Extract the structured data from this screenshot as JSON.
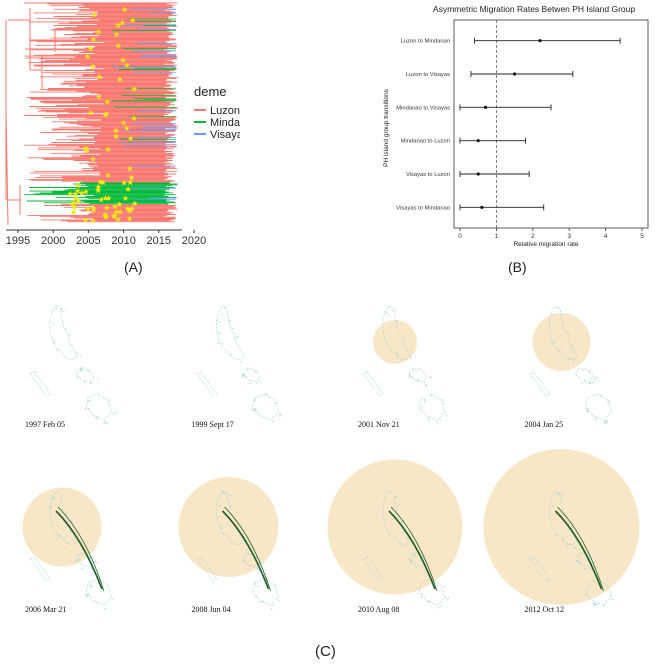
{
  "panels": {
    "a_label": "(A)",
    "b_label": "(B)",
    "c_label": "(C)"
  },
  "chart_data": [
    {
      "type": "tree",
      "x_axis_ticks": [
        "1995",
        "2000",
        "2005",
        "2010",
        "2015",
        "2020"
      ],
      "legend": {
        "title": "deme",
        "position": "right",
        "entries": [
          {
            "name": "Luzon",
            "color": "#f8766d"
          },
          {
            "name": "Mindanao",
            "color": "#00ba38"
          },
          {
            "name": "Visayas",
            "color": "#619cff"
          }
        ]
      },
      "marker_color": "#f5e61a"
    },
    {
      "type": "scatter",
      "title": "Asymmetric Migration Rates Betwen PH Island Group",
      "xlabel": "Relative migration rate",
      "ylabel": "PH island group transitions",
      "xlim": [
        0,
        5
      ],
      "x_ticks": [
        "0",
        "1",
        "2",
        "3",
        "4",
        "5"
      ],
      "reference_line_x": 1,
      "series": [
        {
          "label": "Luzon to Mindanao",
          "value": 2.2,
          "low": 0.4,
          "high": 4.4
        },
        {
          "label": "Luzon to Visayas",
          "value": 1.5,
          "low": 0.3,
          "high": 3.1
        },
        {
          "label": "Mindanao to Visayas",
          "value": 0.7,
          "low": 0.0,
          "high": 2.5
        },
        {
          "label": "Mindanao to Luzon",
          "value": 0.5,
          "low": 0.0,
          "high": 1.8
        },
        {
          "label": "Visayas to Luzon",
          "value": 0.5,
          "low": 0.0,
          "high": 1.9
        },
        {
          "label": "Visayas to Mindanao",
          "value": 0.6,
          "low": 0.0,
          "high": 2.3
        }
      ]
    }
  ],
  "maps": {
    "circle_color": "#f5dfb3",
    "path_color": "#1f5b2a",
    "island_color": "#a9d6d6",
    "frames": [
      {
        "date": "1997 Feb 05",
        "glow": 0
      },
      {
        "date": "1999 Sept 17",
        "glow": 0
      },
      {
        "date": "2001 Nov 21",
        "glow": 0.2
      },
      {
        "date": "2004 Jan 25",
        "glow": 0.3
      },
      {
        "date": "2006 Mar 21",
        "glow": 0.45
      },
      {
        "date": "2008 Jun 04",
        "glow": 0.6
      },
      {
        "date": "2010 Aug 08",
        "glow": 0.85
      },
      {
        "date": "2012 Oct 12",
        "glow": 1.0
      }
    ]
  }
}
